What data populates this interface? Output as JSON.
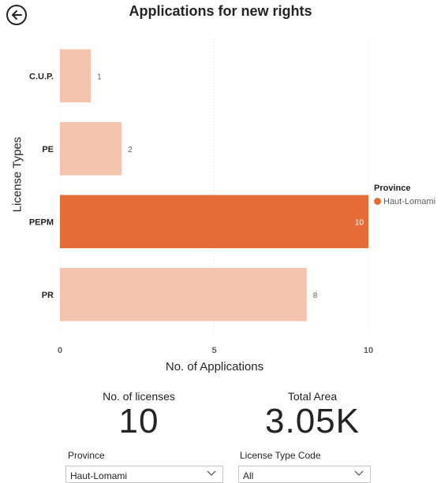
{
  "header": {
    "title": "Applications for new rights",
    "back_icon": "back-arrow-circle-icon"
  },
  "chart_data": {
    "type": "bar",
    "orientation": "horizontal",
    "title": "Applications for new rights",
    "categories": [
      "C.U.P.",
      "PE",
      "PEPM",
      "PR"
    ],
    "values": [
      1,
      2,
      10,
      8
    ],
    "highlighted": "PEPM",
    "xlabel": "No. of Applications",
    "ylabel": "License Types",
    "xlim": [
      0,
      10
    ],
    "xticks": [
      0,
      5,
      10
    ],
    "grid": true,
    "legend": {
      "title": "Province",
      "items": [
        "Haut-Lomami"
      ],
      "position": "right"
    },
    "colors": {
      "highlight": "#E66C37",
      "dimmed": "#F5C4AF"
    }
  },
  "cards": [
    {
      "label": "No. of licenses",
      "value": "10"
    },
    {
      "label": "Total Area",
      "value": "3.05K"
    }
  ],
  "slicers": [
    {
      "label": "Province",
      "value": "Haut-Lomami"
    },
    {
      "label": "License Type Code",
      "value": "All"
    }
  ]
}
